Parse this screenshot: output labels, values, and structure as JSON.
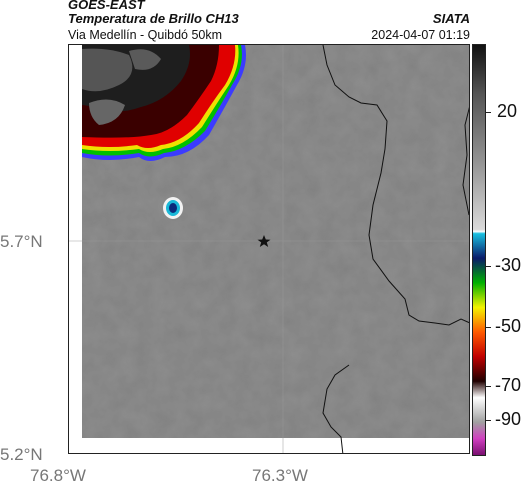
{
  "header": {
    "satellite": "GOES-EAST",
    "product": "Temperatura de Brillo CH13",
    "subtitle": "Via Medellín - Quibdó 50km",
    "source": "SIATA",
    "datetime": "2024-04-07 01:19"
  },
  "map": {
    "lat_labels": [
      "5.7°N",
      "5.2°N"
    ],
    "lon_labels": [
      "76.8°W",
      "76.3°W"
    ],
    "marker": "star-marker",
    "colors": {
      "background_gray": "#808080",
      "cold_core": "#2a2a2a",
      "cloud_edge_red": "#d40000",
      "cloud_edge_blue": "#0044cc"
    }
  },
  "colorbar": {
    "labels": [
      "20",
      "-30",
      "-50",
      "-70",
      "-90"
    ]
  }
}
